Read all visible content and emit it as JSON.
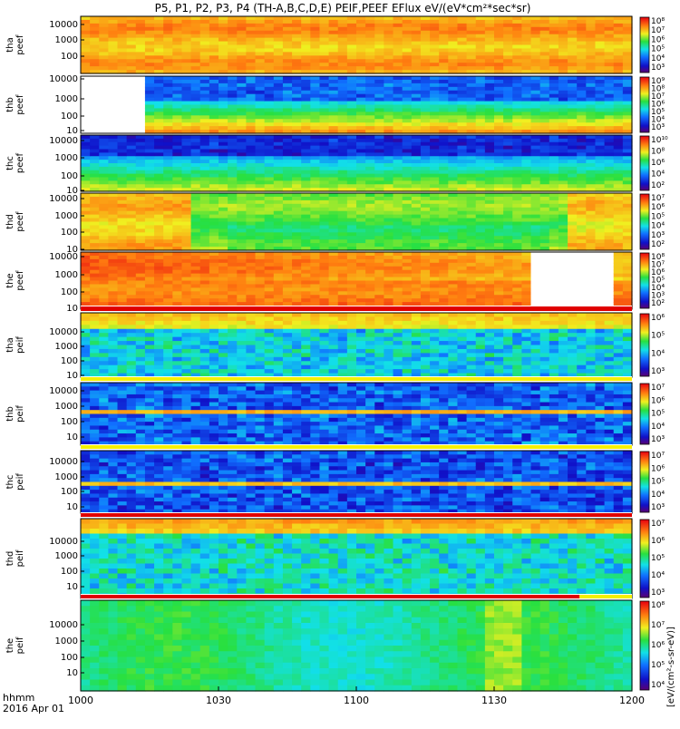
{
  "chart_data": {
    "type": "heatmap",
    "title": "P5, P1, P2, P3, P4 (TH-A,B,C,D,E) PEIF,PEEF EFlux eV/(eV*cm²*sec*sr)",
    "x_ticks": [
      "1000",
      "1030",
      "1100",
      "1130",
      "1200"
    ],
    "x_range_minutes": [
      0,
      120
    ],
    "time_label": "hhmm",
    "date_label": "2016 Apr 01",
    "colorbar_label": "[eV/(cm²-s-sr-eV)]",
    "panels": [
      {
        "probe": "tha",
        "product": "peef",
        "y_ticks": [
          "10000",
          "1000",
          "100"
        ],
        "colorbar_ticks": [
          "10⁸",
          "10⁷",
          "10⁶",
          "10⁵",
          "10⁴",
          "10³"
        ],
        "gap": {
          "from_minute": null,
          "to_minute": null
        },
        "top_flag": "none"
      },
      {
        "probe": "thb",
        "product": "peef",
        "y_ticks": [
          "10000",
          "1000",
          "100",
          "10"
        ],
        "colorbar_ticks": [
          "10⁹",
          "10⁸",
          "10⁷",
          "10⁶",
          "10⁵",
          "10⁴",
          "10³"
        ],
        "gap": {
          "from_minute": 0,
          "to_minute": 13
        },
        "top_flag": "none"
      },
      {
        "probe": "thc",
        "product": "peef",
        "y_ticks": [
          "10000",
          "1000",
          "100",
          "10"
        ],
        "colorbar_ticks": [
          "10¹⁰",
          "10⁸",
          "10⁶",
          "10⁴",
          "10²"
        ],
        "gap": {
          "from_minute": null,
          "to_minute": null
        },
        "top_flag": "none"
      },
      {
        "probe": "thd",
        "product": "peef",
        "y_ticks": [
          "10000",
          "1000",
          "100",
          "10"
        ],
        "colorbar_ticks": [
          "10⁷",
          "10⁶",
          "10⁵",
          "10⁴",
          "10³",
          "10²"
        ],
        "gap": {
          "from_minute": null,
          "to_minute": null
        },
        "top_flag": "none"
      },
      {
        "probe": "the",
        "product": "peef",
        "y_ticks": [
          "10000",
          "1000",
          "100",
          "10"
        ],
        "colorbar_ticks": [
          "10⁸",
          "10⁷",
          "10⁶",
          "10⁵",
          "10⁴",
          "10³",
          "10²"
        ],
        "gap": {
          "from_minute": 97,
          "to_minute": 116
        },
        "top_flag": "none"
      },
      {
        "probe": "tha",
        "product": "peif",
        "y_ticks": [
          "10000",
          "1000",
          "100",
          "10"
        ],
        "colorbar_ticks": [
          "10⁶",
          "10⁵",
          "10⁴",
          "10³"
        ],
        "gap": {
          "from_minute": null,
          "to_minute": null
        },
        "top_flag": "red"
      },
      {
        "probe": "thb",
        "product": "peif",
        "y_ticks": [
          "10000",
          "1000",
          "100",
          "10"
        ],
        "colorbar_ticks": [
          "10⁷",
          "10⁶",
          "10⁵",
          "10⁴",
          "10³"
        ],
        "gap": {
          "from_minute": null,
          "to_minute": null
        },
        "top_flag": "yellow"
      },
      {
        "probe": "thc",
        "product": "peif",
        "y_ticks": [
          "10000",
          "1000",
          "100",
          "10"
        ],
        "colorbar_ticks": [
          "10⁷",
          "10⁶",
          "10⁵",
          "10⁴",
          "10³"
        ],
        "gap": {
          "from_minute": null,
          "to_minute": null
        },
        "top_flag": "yellow"
      },
      {
        "probe": "thd",
        "product": "peif",
        "y_ticks": [
          "10000",
          "1000",
          "100",
          "10"
        ],
        "colorbar_ticks": [
          "10⁷",
          "10⁶",
          "10⁵",
          "10⁴",
          "10³"
        ],
        "gap": {
          "from_minute": null,
          "to_minute": null
        },
        "top_flag": "red"
      },
      {
        "probe": "the",
        "product": "peif",
        "y_ticks": [
          "10000",
          "1000",
          "100",
          "10"
        ],
        "colorbar_ticks": [
          "10⁸",
          "10⁷",
          "10⁶",
          "10⁵",
          "10⁴"
        ],
        "gap": {
          "from_minute": null,
          "to_minute": null
        },
        "top_flag": "red-partial"
      }
    ]
  }
}
